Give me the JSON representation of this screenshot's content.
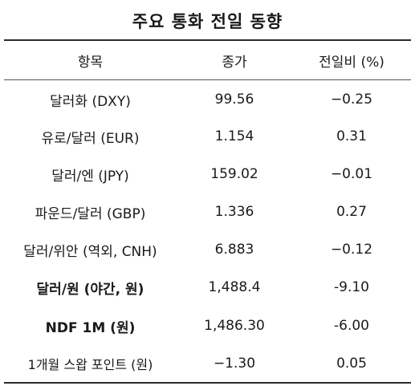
{
  "title": "주요 통화 전일 동향",
  "headers": {
    "item": "항목",
    "close": "종가",
    "change": "전일비 (%)"
  },
  "rows": [
    {
      "item": "달러화 (DXY)",
      "close": "99.56",
      "change": "−0.25"
    },
    {
      "item": "유로/달러 (EUR)",
      "close": "1.154",
      "change": "0.31"
    },
    {
      "item": "달러/엔 (JPY)",
      "close": "159.02",
      "change": "−0.01"
    },
    {
      "item": "파운드/달러 (GBP)",
      "close": "1.336",
      "change": "0.27"
    },
    {
      "item": "달러/위안 (역외, CNH)",
      "close": "6.883",
      "change": "−0.12"
    },
    {
      "item": "달러/원 (야간, 원)",
      "close": "1,488.4",
      "change": "-9.10"
    },
    {
      "item": "NDF 1M (원)",
      "close": "1,486.30",
      "change": "-6.00"
    },
    {
      "item": "1개월 스왑 포인트 (원)",
      "close": "−1.30",
      "change": "0.05"
    }
  ]
}
